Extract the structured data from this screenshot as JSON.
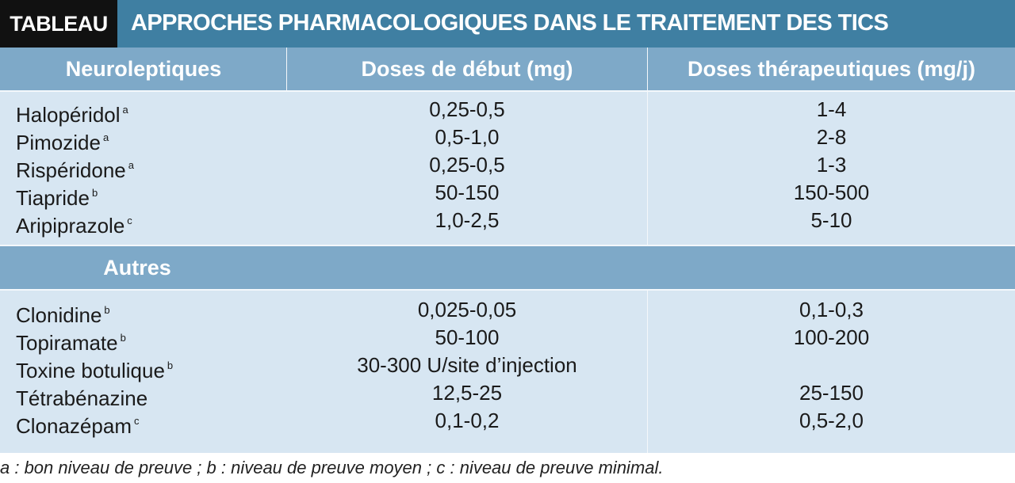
{
  "header": {
    "tag": "TABLEAU",
    "title": "APPROCHES PHARMACOLOGIQUES DANS LE TRAITEMENT DES TICS"
  },
  "columns": {
    "col1": "Neuroleptiques",
    "col2": "Doses de début (mg)",
    "col3": "Doses thérapeutiques (mg/j)"
  },
  "neuroleptiques": [
    {
      "name": "Halopéridol",
      "note": "a",
      "start": "0,25-0,5",
      "thera": "1-4"
    },
    {
      "name": "Pimozide",
      "note": "a",
      "start": "0,5-1,0",
      "thera": "2-8"
    },
    {
      "name": "Rispéridone",
      "note": "a",
      "start": "0,25-0,5",
      "thera": "1-3"
    },
    {
      "name": "Tiapride",
      "note": "b",
      "start": "50-150",
      "thera": "150-500"
    },
    {
      "name": "Aripiprazole",
      "note": "c",
      "start": "1,0-2,5",
      "thera": "5-10"
    }
  ],
  "autres_label": "Autres",
  "autres": [
    {
      "name": "Clonidine",
      "note": "b",
      "start": "0,025-0,05",
      "thera": "0,1-0,3"
    },
    {
      "name": "Topiramate",
      "note": "b",
      "start": "50-100",
      "thera": "100-200"
    },
    {
      "name": "Toxine botulique",
      "note": "b",
      "start": "30-300 U/site d’injection",
      "thera": ""
    },
    {
      "name": "Tétrabénazine",
      "note": "",
      "start": "12,5-25",
      "thera": "25-150"
    },
    {
      "name": "Clonazépam",
      "note": "c",
      "start": "0,1-0,2",
      "thera": "0,5-2,0"
    }
  ],
  "footnote": "a : bon niveau de preuve ; b : niveau de preuve moyen ; c : niveau de preuve minimal.",
  "colors": {
    "title_bar": "#3f7fa2",
    "tag_bg": "#111111",
    "header_band": "#7ea9c8",
    "body_bg": "#d7e6f2"
  }
}
